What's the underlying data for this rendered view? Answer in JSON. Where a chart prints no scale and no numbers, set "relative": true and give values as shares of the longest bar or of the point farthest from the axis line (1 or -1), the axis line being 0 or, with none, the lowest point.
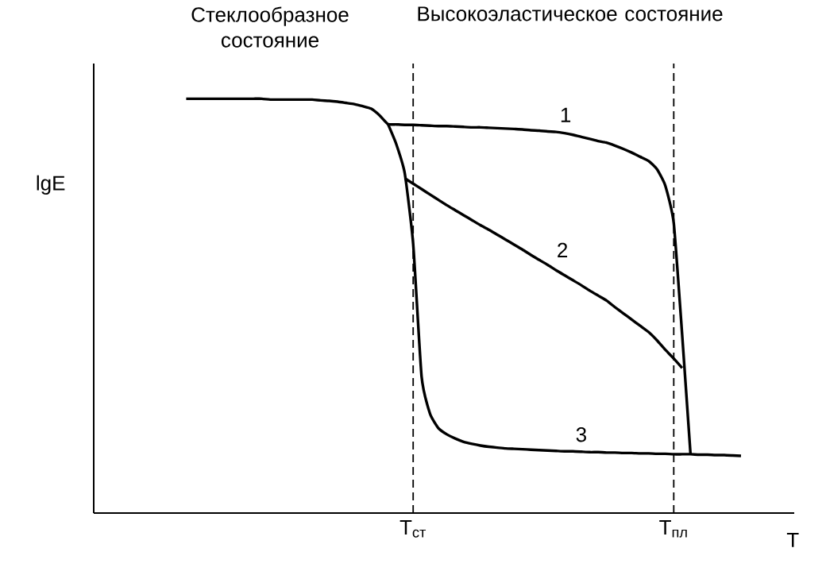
{
  "chart_data": {
    "type": "line",
    "relative": true,
    "xlabel": "T",
    "ylabel": "lgE",
    "grid": "x",
    "categories": [
      null,
      null,
      null,
      null,
      null,
      null,
      null,
      null,
      null,
      null,
      null,
      null,
      null,
      null,
      null,
      null,
      null,
      null,
      null,
      null,
      null,
      null,
      null,
      null,
      null,
      null,
      null,
      null,
      null,
      null,
      null,
      null,
      null,
      null,
      null,
      null,
      null,
      null,
      "T$_{ст}$",
      null,
      null,
      null,
      null,
      null,
      null,
      null,
      null,
      null,
      null,
      null,
      null,
      null,
      null,
      null,
      null,
      null,
      null,
      null,
      null,
      null,
      null,
      null,
      null,
      null,
      null,
      null,
      null,
      null,
      null,
      "T$_{пл}$",
      null,
      null,
      null,
      null,
      null,
      null,
      null,
      null,
      null,
      null,
      null,
      null,
      null,
      null
    ],
    "annotations": [
      "Стеклообразное состояние",
      "Высокоэластическое состояние"
    ],
    "series": [
      {
        "name": "1",
        "color": "#000000",
        "values": [
          null,
          null,
          null,
          null,
          null,
          null,
          null,
          null,
          null,
          null,
          null,
          1.0,
          1.0,
          1.0,
          1.0,
          1.0,
          1.0,
          1.0,
          1.0,
          1.0,
          1.0,
          0.998,
          0.998,
          0.998,
          0.998,
          0.998,
          0.998,
          0.996,
          0.995,
          0.993,
          0.99,
          0.987,
          0.982,
          0.976,
          0.96,
          0.939,
          0.938,
          0.937,
          0.937,
          0.936,
          0.935,
          0.934,
          0.934,
          0.933,
          0.932,
          0.931,
          0.931,
          0.93,
          0.929,
          0.928,
          0.927,
          0.926,
          0.924,
          0.923,
          0.921,
          0.92,
          0.917,
          0.913,
          0.908,
          0.903,
          0.898,
          0.894,
          0.887,
          0.879,
          0.87,
          0.86,
          0.85,
          0.83,
          0.79,
          0.7,
          0.43,
          0.14,
          null,
          null,
          null,
          null,
          null,
          null,
          null,
          null,
          null,
          null,
          null,
          null
        ]
      },
      {
        "name": "2",
        "color": "#000000",
        "values": [
          null,
          null,
          null,
          null,
          null,
          null,
          null,
          null,
          null,
          null,
          null,
          null,
          null,
          null,
          null,
          null,
          null,
          null,
          null,
          null,
          null,
          null,
          null,
          null,
          null,
          null,
          null,
          null,
          null,
          null,
          null,
          null,
          null,
          null,
          null,
          null,
          null,
          0.808,
          0.795,
          0.782,
          0.769,
          0.756,
          0.743,
          0.731,
          0.719,
          0.707,
          0.695,
          0.684,
          0.672,
          0.66,
          0.648,
          0.636,
          0.623,
          0.611,
          0.599,
          0.586,
          0.574,
          0.562,
          0.55,
          0.537,
          0.525,
          0.513,
          0.497,
          0.482,
          0.467,
          0.452,
          0.437,
          0.417,
          0.394,
          0.373,
          0.35,
          null,
          null,
          null,
          null,
          null,
          null,
          null,
          null,
          null,
          null,
          null,
          null,
          null
        ]
      },
      {
        "name": "3",
        "color": "#000000",
        "values": [
          null,
          null,
          null,
          null,
          null,
          null,
          null,
          null,
          null,
          null,
          null,
          null,
          null,
          null,
          null,
          null,
          null,
          null,
          null,
          null,
          null,
          null,
          null,
          null,
          null,
          null,
          null,
          null,
          null,
          null,
          null,
          null,
          null,
          null,
          null,
          0.939,
          0.89,
          0.82,
          0.65,
          0.33,
          0.24,
          0.205,
          0.19,
          0.18,
          0.172,
          0.167,
          0.163,
          0.16,
          0.158,
          0.156,
          0.155,
          0.154,
          0.153,
          0.152,
          0.151,
          0.15,
          0.149,
          0.149,
          0.148,
          0.147,
          0.147,
          0.146,
          0.146,
          0.145,
          0.145,
          0.144,
          0.144,
          0.143,
          0.143,
          0.142,
          0.142,
          0.142,
          0.141,
          0.141,
          0.14,
          0.14,
          0.139,
          0.138,
          null,
          null,
          null,
          null,
          null,
          null
        ]
      }
    ]
  }
}
